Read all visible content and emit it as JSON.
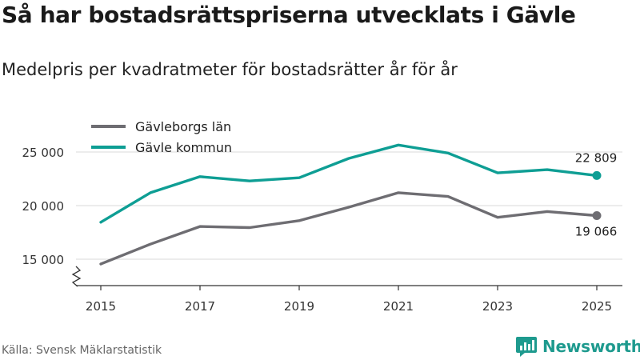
{
  "title": "Så har bostadsrättspriserna utvecklats i Gävle",
  "subtitle": "Medelpris per kvadratmeter för bostadsrätter år för år",
  "source": "Källa: Svensk Mäklarstatistik",
  "brand": {
    "name": "Newsworthy",
    "icon": "bar-chart-logo-icon",
    "color": "#1e9a8e"
  },
  "chart_data": {
    "type": "line",
    "x": [
      2015,
      2016,
      2017,
      2018,
      2019,
      2020,
      2021,
      2022,
      2023,
      2024,
      2025
    ],
    "x_ticks": [
      2015,
      2017,
      2019,
      2021,
      2023,
      2025
    ],
    "x_tick_labels": [
      "2015",
      "2017",
      "2019",
      "2021",
      "2023",
      "2025"
    ],
    "y_ticks": [
      15000,
      20000,
      25000
    ],
    "y_tick_labels": [
      "15 000",
      "20 000",
      "25 000"
    ],
    "ylim": [
      13000,
      26500
    ],
    "axis_break": true,
    "grid": true,
    "legend_position": "top-left",
    "series": [
      {
        "name": "Gävleborgs län",
        "color": "#6e6d72",
        "values": [
          14550,
          16400,
          18050,
          17950,
          18600,
          19850,
          21200,
          20850,
          18900,
          19450,
          19066
        ],
        "end_label": "19 066",
        "end_label_position": "below"
      },
      {
        "name": "Gävle kommun",
        "color": "#0e9e94",
        "values": [
          18450,
          21200,
          22700,
          22300,
          22600,
          24400,
          25650,
          24900,
          23050,
          23350,
          22809
        ],
        "end_label": "22 809",
        "end_label_position": "above"
      }
    ]
  }
}
